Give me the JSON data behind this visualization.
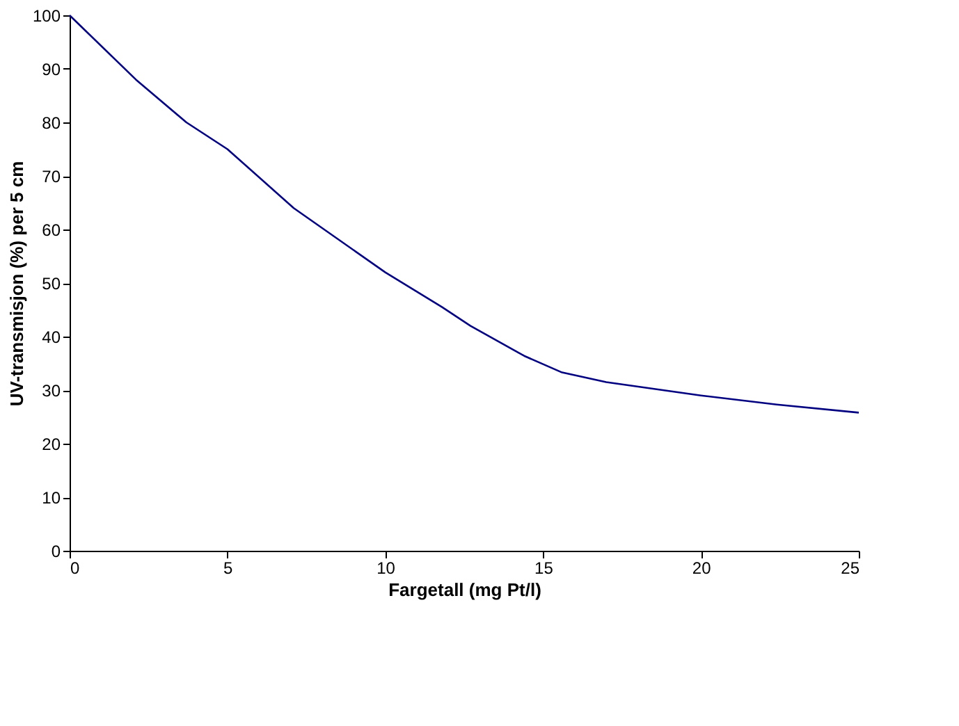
{
  "chart_data": {
    "type": "line",
    "xlabel": "Fargetall (mg Pt/l)",
    "ylabel": "UV-transmisjon (%) per 5 cm",
    "x": [
      0,
      2.1,
      3.7,
      5,
      7.1,
      10,
      11.8,
      12.7,
      14.4,
      15.6,
      17,
      20,
      22.4,
      25
    ],
    "series": [
      {
        "color": "#000080",
        "values": [
          100,
          88,
          80,
          75,
          64,
          52,
          45.5,
          42,
          36.4,
          33.3,
          31.5,
          29,
          27.3,
          25.8
        ]
      }
    ],
    "xlim": [
      0,
      25
    ],
    "xticks": [
      0,
      5,
      10,
      15,
      20,
      25
    ],
    "ylim": [
      0,
      100
    ],
    "yticks": [
      0,
      10,
      20,
      30,
      40,
      50,
      60,
      70,
      80,
      90,
      100
    ],
    "grid": false,
    "marker": "none",
    "line_style": "solid"
  }
}
